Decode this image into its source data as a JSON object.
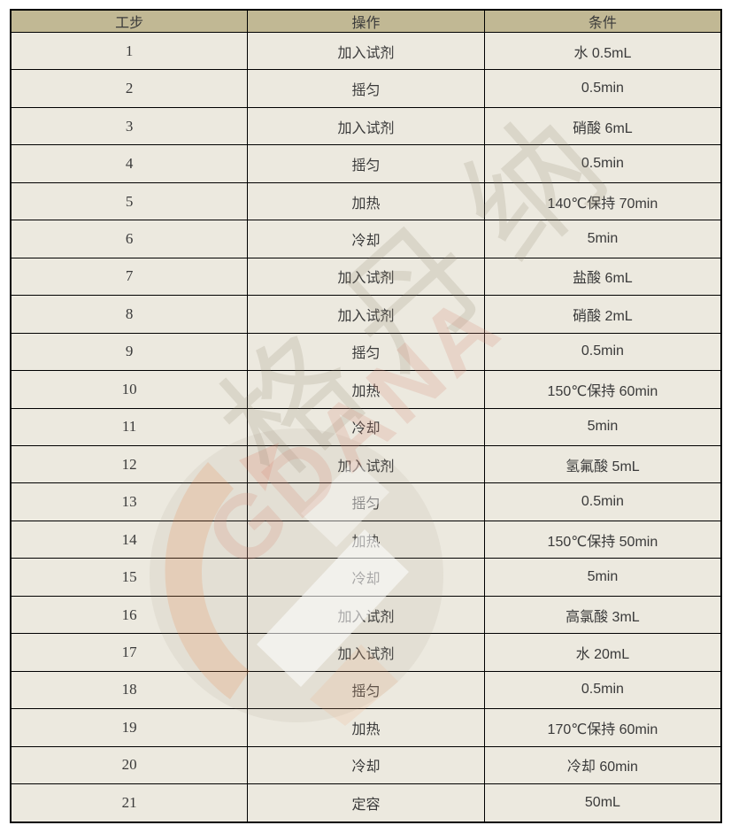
{
  "table": {
    "headers": [
      "工步",
      "操作",
      "条件"
    ],
    "rows": [
      [
        "1",
        "加入试剂",
        "水 0.5mL"
      ],
      [
        "2",
        "摇匀",
        "0.5min"
      ],
      [
        "3",
        "加入试剂",
        "硝酸 6mL"
      ],
      [
        "4",
        "摇匀",
        "0.5min"
      ],
      [
        "5",
        "加热",
        "140℃保持 70min"
      ],
      [
        "6",
        "冷却",
        "5min"
      ],
      [
        "7",
        "加入试剂",
        "盐酸 6mL"
      ],
      [
        "8",
        "加入试剂",
        "硝酸 2mL"
      ],
      [
        "9",
        "摇匀",
        "0.5min"
      ],
      [
        "10",
        "加热",
        "150℃保持 60min"
      ],
      [
        "11",
        "冷却",
        "5min"
      ],
      [
        "12",
        "加入试剂",
        "氢氟酸 5mL"
      ],
      [
        "13",
        "摇匀",
        "0.5min"
      ],
      [
        "14",
        "加热",
        "150℃保持 50min"
      ],
      [
        "15",
        "冷却",
        "5min"
      ],
      [
        "16",
        "加入试剂",
        "高氯酸 3mL"
      ],
      [
        "17",
        "加入试剂",
        "水 20mL"
      ],
      [
        "18",
        "摇匀",
        "0.5min"
      ],
      [
        "19",
        "加热",
        "170℃保持 60min"
      ],
      [
        "20",
        "冷却",
        "冷却 60min"
      ],
      [
        "21",
        "定容",
        "50mL"
      ]
    ]
  },
  "watermark": {
    "cn_text": "格丹纳",
    "latin_text": "GDANA"
  },
  "colors": {
    "header_bg": "#c1b894",
    "cell_bg": "#ece9df",
    "border": "#000000",
    "text": "#3a3a3a",
    "watermark_gray": "#8a8067",
    "watermark_pink": "#d68a76",
    "logo_orange": "#e87d3c"
  }
}
